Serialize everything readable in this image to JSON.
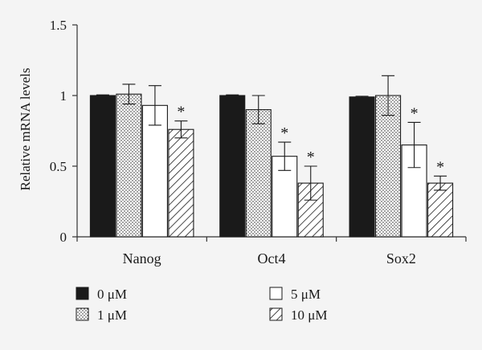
{
  "chart_data": {
    "type": "bar",
    "ylabel": "Relative mRNA levels",
    "xlabel": "",
    "ylim": [
      0,
      1.5
    ],
    "yticks": [
      0,
      0.5,
      1,
      1.5
    ],
    "ytick_labels": [
      "0",
      "0.5",
      "1",
      "1.5"
    ],
    "categories": [
      "Nanog",
      "Oct4",
      "Sox2"
    ],
    "series": [
      {
        "name": "0 μM",
        "pattern": "solid",
        "values": [
          1.0,
          1.0,
          0.99
        ],
        "errors": [
          0.005,
          0.005,
          0.005
        ],
        "significant": [
          false,
          false,
          false
        ]
      },
      {
        "name": "1 μM",
        "pattern": "dotted",
        "values": [
          1.01,
          0.9,
          1.0
        ],
        "errors": [
          0.07,
          0.1,
          0.14
        ],
        "significant": [
          false,
          false,
          false
        ]
      },
      {
        "name": "5 μM",
        "pattern": "open",
        "values": [
          0.93,
          0.57,
          0.65
        ],
        "errors": [
          0.14,
          0.1,
          0.16
        ],
        "significant": [
          false,
          true,
          true
        ]
      },
      {
        "name": "10 μM",
        "pattern": "hatched",
        "values": [
          0.76,
          0.38,
          0.38
        ],
        "errors": [
          0.06,
          0.12,
          0.05
        ],
        "significant": [
          true,
          true,
          true
        ]
      }
    ],
    "significance_mark": "*",
    "legend_position": "bottom",
    "grid": false,
    "colors": {
      "bar_fill_dark": "#1a1a1a",
      "bar_fill_light": "#ffffff",
      "axis": "#333333",
      "background": "#f4f4f4"
    }
  }
}
